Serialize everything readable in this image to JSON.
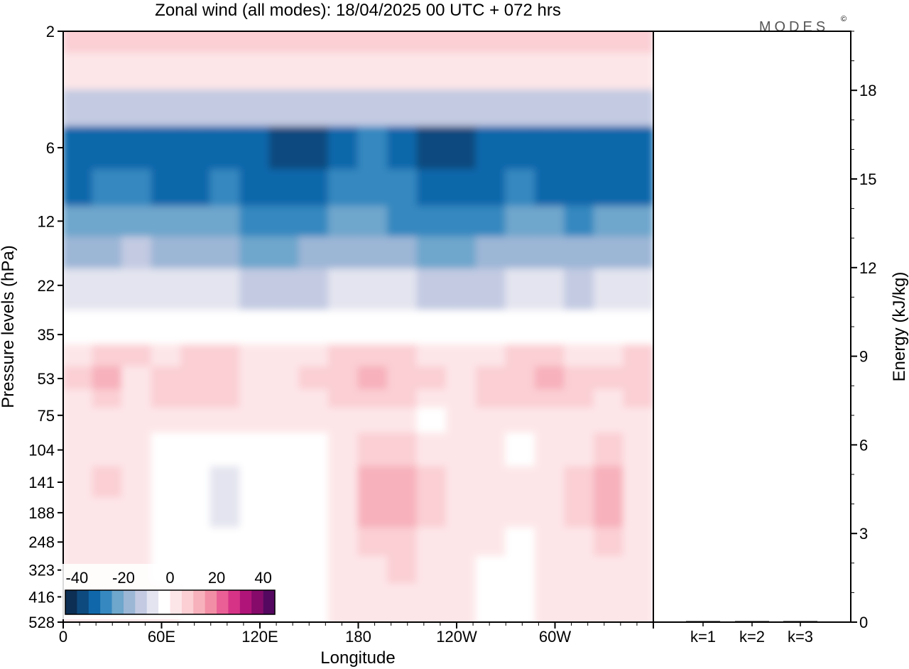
{
  "title": "Zonal wind (all modes):  18/04/2025  00 UTC  + 072 hrs",
  "brand": "MODES",
  "brand_mark": "©",
  "chart_data": [
    {
      "type": "heatmap",
      "title": "Zonal wind (all modes):  18/04/2025  00 UTC  + 072 hrs",
      "xlabel": "Longitude",
      "ylabel": "Pressure levels (hPa)",
      "x_ticks": [
        "0",
        "60E",
        "120E",
        "180",
        "120W",
        "60W"
      ],
      "y_ticks": [
        "2",
        "6",
        "12",
        "22",
        "35",
        "53",
        "75",
        "104",
        "141",
        "188",
        "248",
        "323",
        "416",
        "528"
      ],
      "xlim": [
        0,
        360
      ],
      "levels": [
        2,
        6,
        12,
        22,
        35,
        53,
        75,
        104,
        141,
        188,
        248,
        323,
        416,
        528
      ],
      "colorbar": {
        "ticks": [
          "-40",
          "-20",
          "0",
          "20",
          "40"
        ],
        "range": [
          -45,
          45
        ],
        "step": 5,
        "colors": [
          "#0d2f54",
          "#0e4a7e",
          "#1068aa",
          "#3688c0",
          "#6ea6cc",
          "#9cb6d6",
          "#c3cae2",
          "#e3e4ef",
          "#ffffff",
          "#fde6e8",
          "#fbcfd4",
          "#f7b1bc",
          "#f28ea5",
          "#ea5f96",
          "#d63387",
          "#b01478",
          "#850a6a",
          "#55085f"
        ]
      },
      "field_rows": [
        {
          "level": 2,
          "values": [
            7,
            6,
            7,
            8,
            8,
            7,
            7,
            8,
            8,
            9,
            9,
            9,
            8,
            7,
            8,
            8,
            8,
            7,
            7,
            8
          ]
        },
        {
          "level": 3,
          "values": [
            2,
            2,
            3,
            3,
            2,
            2,
            3,
            3,
            3,
            4,
            4,
            4,
            3,
            2,
            3,
            3,
            3,
            2,
            2,
            3
          ]
        },
        {
          "level": 4,
          "values": [
            -14,
            -12,
            -13,
            -14,
            -14,
            -12,
            -13,
            -15,
            -14,
            -12,
            -11,
            -13,
            -14,
            -15,
            -14,
            -12,
            -13,
            -14,
            -13,
            -13
          ]
        },
        {
          "level": 6,
          "values": [
            -34,
            -33,
            -34,
            -35,
            -34,
            -32,
            -34,
            -38,
            -36,
            -32,
            -30,
            -34,
            -37,
            -36,
            -35,
            -33,
            -34,
            -35,
            -34,
            -35
          ]
        },
        {
          "level": 9,
          "values": [
            -32,
            -30,
            -30,
            -31,
            -32,
            -30,
            -31,
            -33,
            -32,
            -29,
            -28,
            -30,
            -33,
            -33,
            -32,
            -30,
            -31,
            -32,
            -31,
            -32
          ]
        },
        {
          "level": 12,
          "values": [
            -24,
            -22,
            -22,
            -24,
            -25,
            -24,
            -27,
            -29,
            -27,
            -24,
            -23,
            -26,
            -28,
            -27,
            -26,
            -24,
            -25,
            -26,
            -24,
            -25
          ]
        },
        {
          "level": 16,
          "values": [
            -18,
            -16,
            -15,
            -17,
            -18,
            -18,
            -21,
            -22,
            -20,
            -18,
            -17,
            -19,
            -21,
            -21,
            -20,
            -18,
            -19,
            -20,
            -18,
            -19
          ]
        },
        {
          "level": 22,
          "values": [
            -9,
            -8,
            -7,
            -8,
            -9,
            -9,
            -11,
            -12,
            -11,
            -9,
            -8,
            -10,
            -12,
            -12,
            -11,
            -9,
            -10,
            -11,
            -9,
            -10
          ]
        },
        {
          "level": 35,
          "values": [
            -2,
            -1,
            -1,
            -1,
            -2,
            -2,
            -3,
            -3,
            -2,
            -1,
            -1,
            -2,
            -3,
            -3,
            -2,
            -2,
            -2,
            -2,
            -2,
            -2
          ]
        },
        {
          "level": 42,
          "values": [
            4,
            6,
            5,
            4,
            5,
            5,
            3,
            2,
            4,
            5,
            6,
            5,
            4,
            3,
            4,
            5,
            5,
            4,
            4,
            5
          ]
        },
        {
          "level": 53,
          "values": [
            5,
            11,
            4,
            7,
            8,
            7,
            4,
            3,
            5,
            8,
            12,
            6,
            5,
            4,
            6,
            9,
            12,
            6,
            5,
            6
          ]
        },
        {
          "level": 65,
          "values": [
            4,
            6,
            4,
            6,
            7,
            5,
            3,
            2,
            4,
            6,
            8,
            5,
            1,
            3,
            5,
            6,
            7,
            5,
            4,
            5
          ]
        },
        {
          "level": 75,
          "values": [
            3,
            2,
            2,
            3,
            2,
            1,
            0,
            1,
            2,
            3,
            4,
            3,
            -1,
            2,
            3,
            2,
            2,
            3,
            3,
            3
          ]
        },
        {
          "level": 104,
          "values": [
            3,
            2,
            1,
            -2,
            -2,
            -3,
            -4,
            -3,
            -1,
            2,
            9,
            6,
            4,
            3,
            1,
            -1,
            1,
            3,
            5,
            3
          ]
        },
        {
          "level": 141,
          "values": [
            3,
            5,
            1,
            -3,
            -3,
            -6,
            -4,
            -3,
            -2,
            2,
            10,
            11,
            6,
            3,
            1,
            0,
            3,
            6,
            10,
            4
          ]
        },
        {
          "level": 188,
          "values": [
            2,
            4,
            1,
            -3,
            -4,
            -6,
            -4,
            -3,
            -2,
            2,
            10,
            11,
            5,
            2,
            1,
            0,
            2,
            6,
            10,
            4
          ]
        },
        {
          "level": 248,
          "values": [
            2,
            3,
            1,
            -2,
            -3,
            -4,
            -3,
            -2,
            -1,
            2,
            7,
            8,
            4,
            1,
            0,
            -1,
            1,
            4,
            8,
            3
          ]
        },
        {
          "level": 323,
          "values": [
            1,
            2,
            1,
            -1,
            -2,
            -3,
            -2,
            -2,
            -1,
            1,
            4,
            5,
            3,
            0,
            -1,
            -1,
            1,
            2,
            4,
            2
          ]
        },
        {
          "level": 416,
          "values": [
            1,
            1,
            1,
            0,
            -1,
            -2,
            -2,
            -1,
            -1,
            1,
            2,
            3,
            2,
            0,
            -2,
            -2,
            0,
            1,
            2,
            1
          ]
        },
        {
          "level": 528,
          "values": [
            1,
            1,
            1,
            0,
            -1,
            -1,
            -2,
            -1,
            -1,
            0,
            1,
            1,
            1,
            0,
            -1,
            -2,
            0,
            0,
            1,
            1
          ]
        }
      ]
    },
    {
      "type": "bar",
      "ylabel": "Energy (kJ/kg)",
      "categories": [
        "k=1",
        "k=2",
        "k=3"
      ],
      "values": [
        0,
        0,
        0
      ],
      "ylim": [
        0,
        20
      ],
      "y_ticks": [
        "0",
        "3",
        "6",
        "9",
        "12",
        "15",
        "18"
      ]
    }
  ]
}
